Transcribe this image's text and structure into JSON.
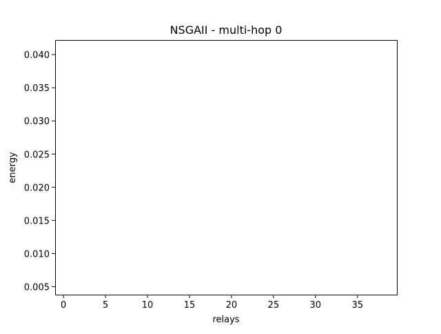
{
  "chart_data": {
    "type": "scatter",
    "title": "NSGAII - multi-hop 0",
    "xlabel": "relays",
    "ylabel": "energy",
    "xlim": [
      -1,
      39.7
    ],
    "ylim": [
      0.0038,
      0.0422
    ],
    "xticks": [
      0,
      5,
      10,
      15,
      20,
      25,
      30,
      35
    ],
    "yticks": [
      0.005,
      0.01,
      0.015,
      0.02,
      0.025,
      0.03,
      0.035,
      0.04
    ],
    "ytick_labels": [
      "0.005",
      "0.010",
      "0.015",
      "0.020",
      "0.025",
      "0.030",
      "0.035",
      "0.040"
    ],
    "grid": false,
    "series": [
      {
        "x": [],
        "y": []
      }
    ]
  }
}
